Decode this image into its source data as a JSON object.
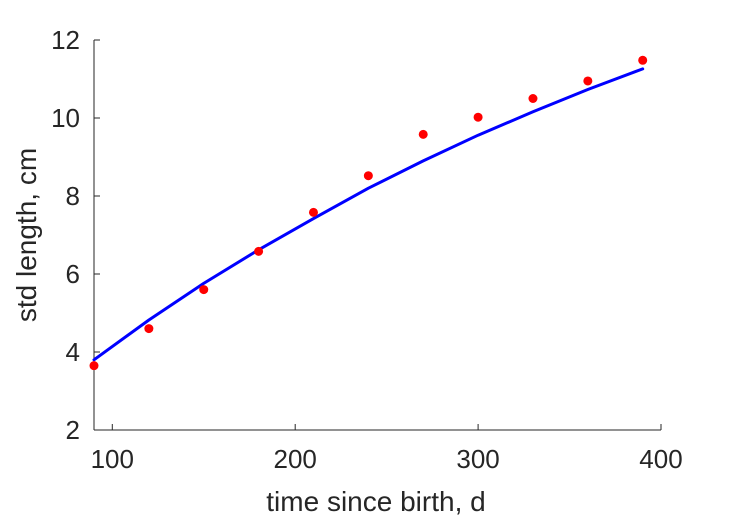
{
  "chart_data": {
    "type": "scatter",
    "title": "",
    "xlabel": "time since birth, d",
    "ylabel": "std length, cm",
    "xlim": [
      90,
      400
    ],
    "ylim": [
      2,
      12
    ],
    "xticks": [
      100,
      200,
      300,
      400
    ],
    "yticks": [
      2,
      4,
      6,
      8,
      10,
      12
    ],
    "grid": false,
    "legend": "none",
    "series": [
      {
        "kind": "points",
        "color": "#ff0000",
        "x": [
          90,
          120,
          150,
          180,
          210,
          240,
          270,
          300,
          330,
          360,
          390
        ],
        "y": [
          3.65,
          4.6,
          5.6,
          6.58,
          7.58,
          8.52,
          9.58,
          10.02,
          10.5,
          10.95,
          11.48
        ]
      },
      {
        "kind": "line",
        "color": "#0000ff",
        "x": [
          90,
          120,
          150,
          180,
          210,
          240,
          270,
          300,
          330,
          360,
          390
        ],
        "y": [
          3.8,
          4.82,
          5.76,
          6.62,
          7.42,
          8.2,
          8.9,
          9.56,
          10.16,
          10.73,
          11.26
        ]
      }
    ]
  }
}
